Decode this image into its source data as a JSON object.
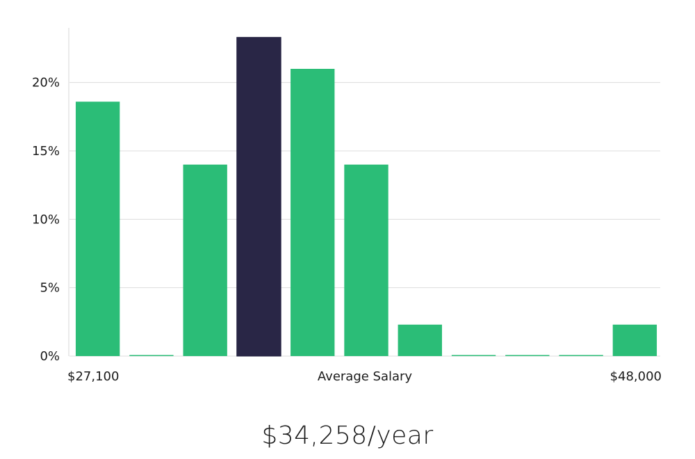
{
  "chart_data": {
    "type": "bar",
    "xlabel": "Average Salary",
    "x_range_labels": [
      "$27,100",
      "$48,000"
    ],
    "yticks": [
      "0%",
      "5%",
      "10%",
      "15%",
      "20%"
    ],
    "ylim": [
      0,
      24
    ],
    "values": [
      18.6,
      0,
      14.0,
      23.3,
      21.0,
      14.0,
      2.3,
      0,
      0,
      0,
      2.3
    ],
    "highlight_index": 3,
    "grid": true,
    "colors": {
      "bar": "#2bbd77",
      "highlight": "#292646",
      "grid": "#dcdcdc",
      "axis": "#cfcfcf"
    }
  },
  "summary": {
    "average_salary": "$34,258/year"
  }
}
